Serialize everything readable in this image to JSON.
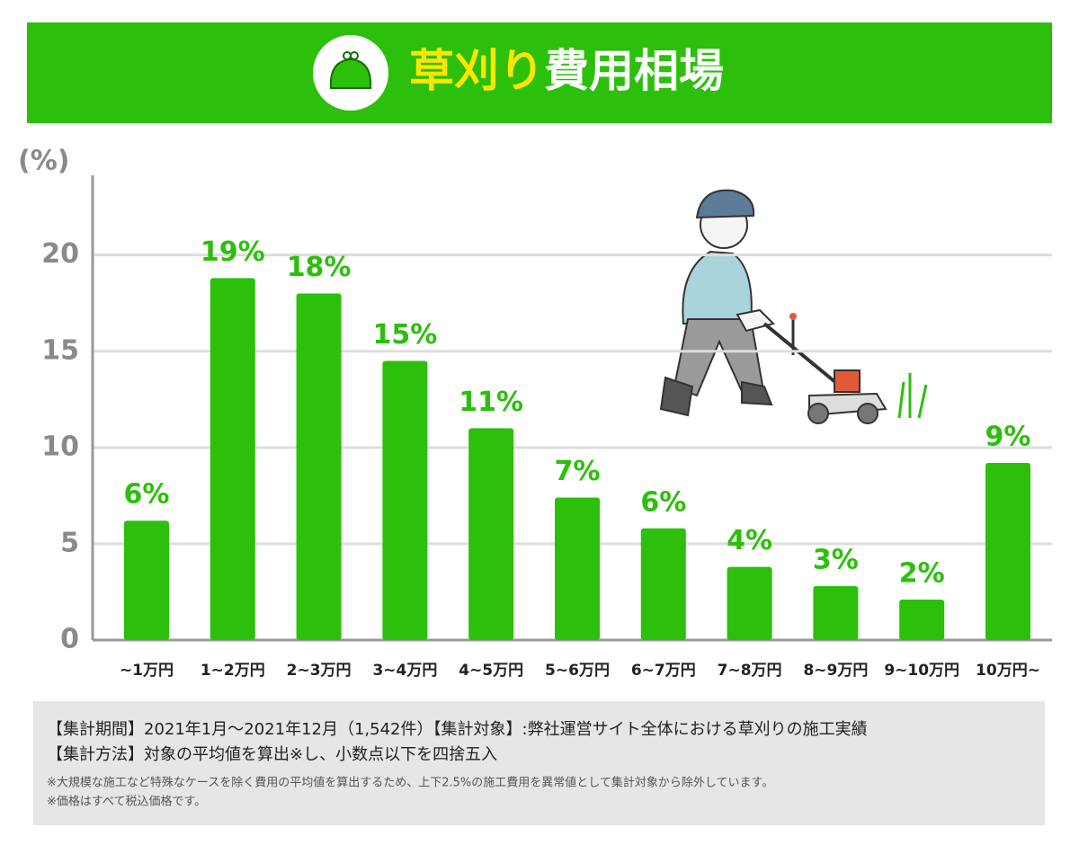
{
  "chart_data": {
    "type": "bar",
    "title": "草刈り費用相場",
    "y_label": "(%)",
    "categories": [
      "~1万円",
      "1~2万円",
      "2~3万円",
      "3~4万円",
      "4~5万円",
      "5~6万円",
      "6~7万円",
      "7~8万円",
      "8~9万円",
      "9~10万円",
      "10万円~"
    ],
    "values": [
      6.2,
      18.8,
      18.0,
      14.5,
      11.0,
      7.4,
      5.8,
      3.8,
      2.8,
      2.1,
      9.2
    ],
    "value_labels": [
      "6%",
      "19%",
      "18%",
      "15%",
      "11%",
      "7%",
      "6%",
      "4%",
      "3%",
      "2%",
      "9%"
    ],
    "color": "#2cbf0c",
    "ylim": [
      0,
      24
    ],
    "yticks": [
      0,
      5,
      10,
      15,
      20
    ],
    "grid": true
  },
  "footnotes": {
    "lines": [
      "【集計期間】2021年1月〜2021年12月（1,542件）【集計対象】:弊社運営サイト全体における草刈りの施工実績",
      "【集計方法】対象の平均値を算出※し、小数点以下を四捨五入"
    ],
    "notes": [
      "※大規模な施工など特殊なケースを除く費用の平均値を算出するため、上下2.5%の施工費用を異常値として集計対象から除外しています。",
      "※価格はすべて税込価格です。"
    ]
  }
}
